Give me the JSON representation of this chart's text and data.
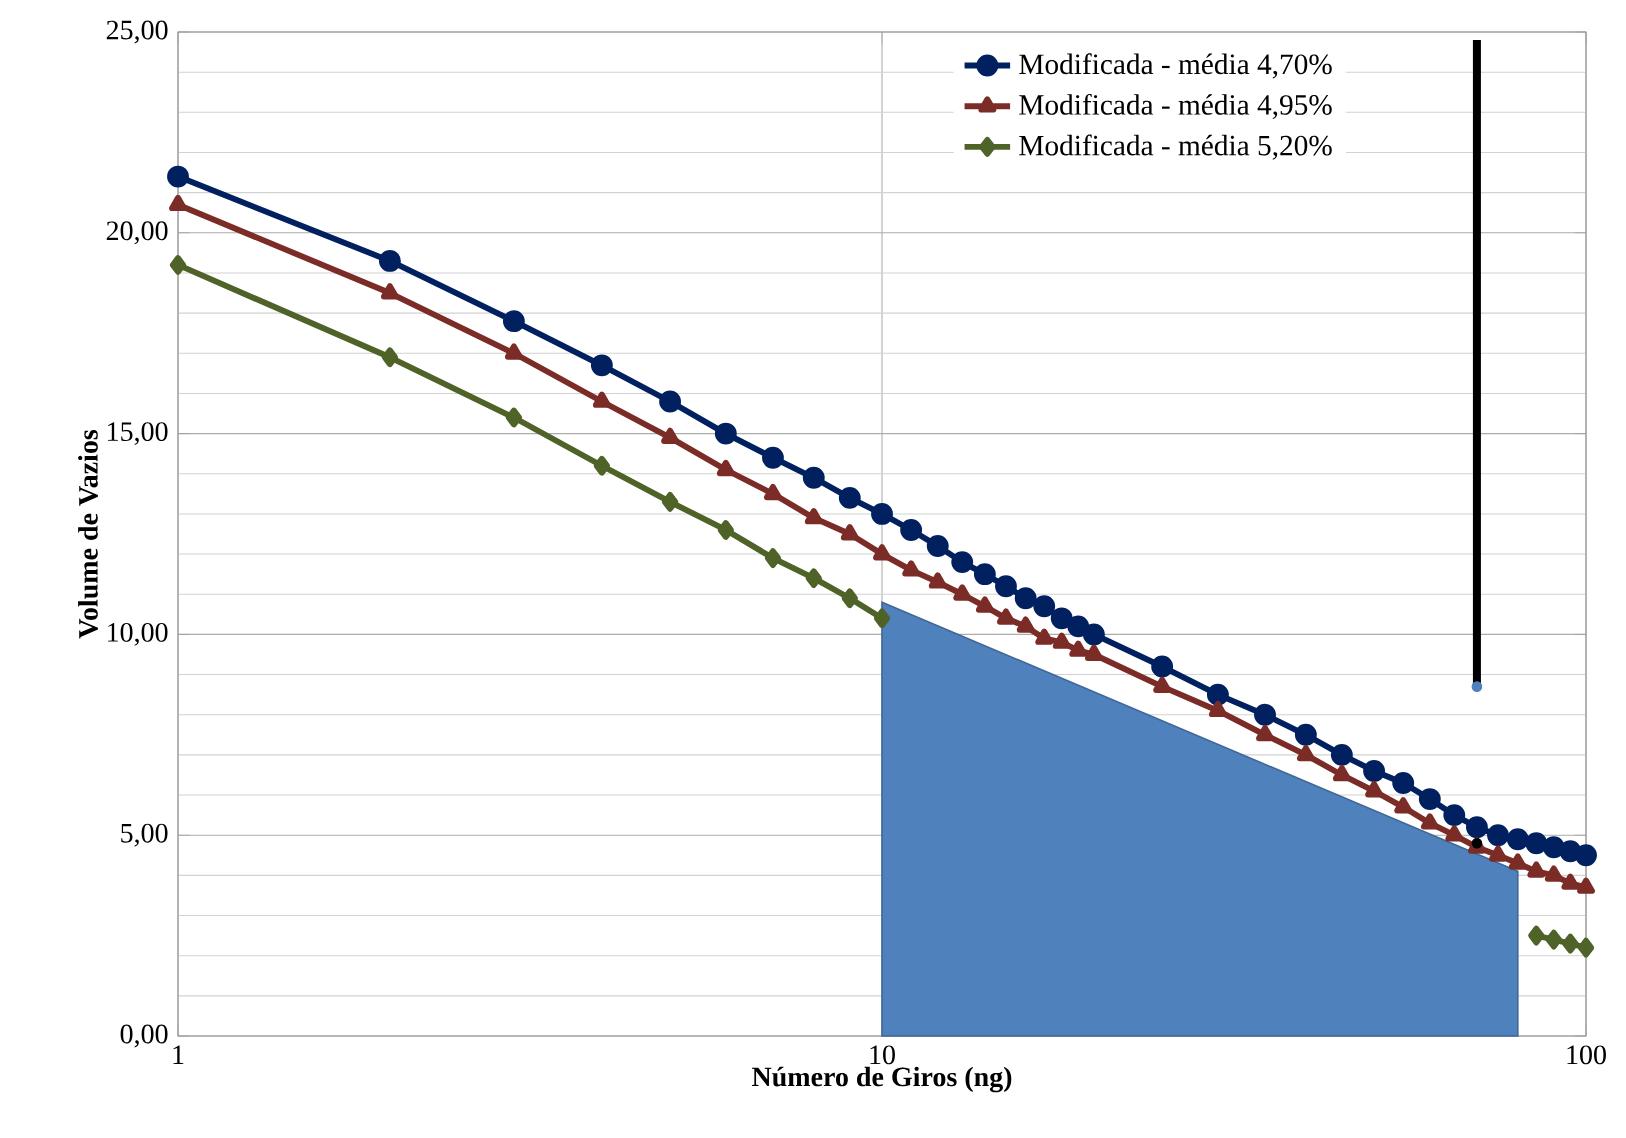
{
  "chart_data": {
    "type": "line",
    "xlabel": "Número de Giros (ng)",
    "ylabel": "Volume de Vazios",
    "log": "x",
    "grid": true,
    "legend": "top right",
    "line_style": "solid",
    "xlim": [
      1,
      100
    ],
    "xticks": [
      1,
      10,
      100
    ],
    "ylim": [
      0,
      25
    ],
    "yticks": [
      {
        "value": 0,
        "label": "0,00"
      },
      {
        "value": 5,
        "label": "5,00"
      },
      {
        "value": 10,
        "label": "10,00"
      },
      {
        "value": 15,
        "label": "15,00"
      },
      {
        "value": 20,
        "label": "20,00"
      },
      {
        "value": 25,
        "label": "25,00"
      }
    ],
    "x": [
      1,
      2,
      3,
      4,
      5,
      6,
      7,
      8,
      9,
      10,
      11,
      12,
      13,
      14,
      15,
      16,
      17,
      18,
      19,
      20,
      25,
      30,
      35,
      40,
      45,
      50,
      55,
      60,
      65,
      70,
      75,
      80,
      85,
      90,
      95,
      100
    ],
    "series": [
      {
        "name": "Modificada - média 4,70%",
        "color": "#002060",
        "marker": "circle",
        "values": [
          21.4,
          19.3,
          17.8,
          16.7,
          15.8,
          15.0,
          14.4,
          13.9,
          13.4,
          13.0,
          12.6,
          12.2,
          11.8,
          11.5,
          11.2,
          10.9,
          10.7,
          10.4,
          10.2,
          10.0,
          9.2,
          8.5,
          8.0,
          7.5,
          7.0,
          6.6,
          6.3,
          5.9,
          5.5,
          5.2,
          5.0,
          4.9,
          4.8,
          4.7,
          4.6,
          4.5
        ]
      },
      {
        "name": "Modificada - média 4,95%",
        "color": "#7b2c26",
        "marker": "triangle",
        "values": [
          20.7,
          18.5,
          17.0,
          15.8,
          14.9,
          14.1,
          13.5,
          12.9,
          12.5,
          12.0,
          11.6,
          11.3,
          11.0,
          10.7,
          10.4,
          10.2,
          9.9,
          9.8,
          9.6,
          9.5,
          8.7,
          8.1,
          7.5,
          7.0,
          6.5,
          6.1,
          5.7,
          5.3,
          5.0,
          4.7,
          4.5,
          4.3,
          4.1,
          4.0,
          3.8,
          3.7
        ]
      },
      {
        "name": "Modificada - média 5,20%",
        "color": "#4f6228",
        "marker": "diamond",
        "values": [
          19.2,
          16.9,
          15.4,
          14.2,
          13.3,
          12.6,
          11.9,
          11.4,
          10.9,
          10.4,
          null,
          null,
          null,
          null,
          null,
          null,
          null,
          null,
          null,
          null,
          null,
          null,
          null,
          null,
          null,
          null,
          null,
          null,
          null,
          null,
          null,
          null,
          2.5,
          2.4,
          2.3,
          2.2
        ]
      },
      {
        "type": "area",
        "color": "#4f81bd",
        "x": [
          10,
          80
        ],
        "values": [
          10.8,
          4.1
        ]
      },
      {
        "type": "line",
        "color": "#000000",
        "marker": "none",
        "x": [
          70,
          70
        ],
        "values": [
          24.8,
          8.7
        ]
      },
      {
        "type": "scatter",
        "color": "#4f81bd",
        "marker": "circle",
        "x": [
          70
        ],
        "values": [
          8.7
        ]
      },
      {
        "type": "scatter",
        "color": "#000000",
        "marker": "circle",
        "x": [
          70
        ],
        "values": [
          4.8
        ]
      }
    ]
  }
}
